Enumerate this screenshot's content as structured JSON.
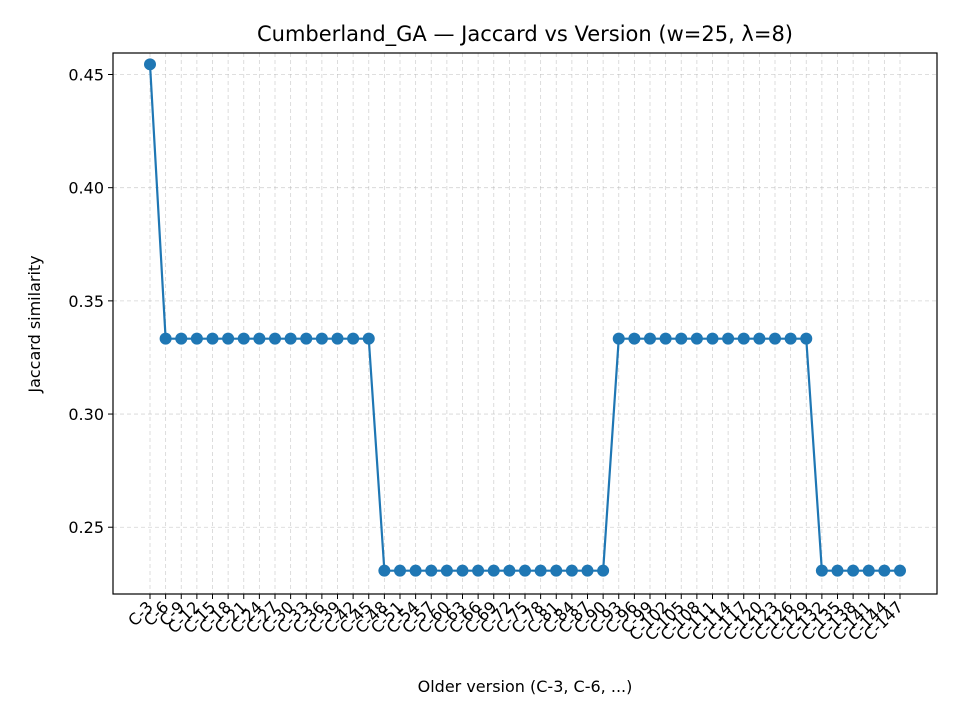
{
  "chart_data": {
    "type": "line",
    "title": "Cumberland_GA — Jaccard vs Version (w=25, λ=8)",
    "xlabel": "Older version (C-3, C-6, ...)",
    "ylabel": "Jaccard similarity",
    "ylim": [
      0.2205,
      0.4595
    ],
    "yticks": [
      0.25,
      0.3,
      0.35,
      0.4,
      0.45
    ],
    "ytick_labels": [
      "0.25",
      "0.30",
      "0.35",
      "0.40",
      "0.45"
    ],
    "grid": true,
    "categories": [
      "C-3",
      "C-6",
      "C-9",
      "C-12",
      "C-15",
      "C-18",
      "C-21",
      "C-24",
      "C-27",
      "C-30",
      "C-33",
      "C-36",
      "C-39",
      "C-42",
      "C-45",
      "C-48",
      "C-51",
      "C-54",
      "C-57",
      "C-60",
      "C-63",
      "C-66",
      "C-69",
      "C-72",
      "C-75",
      "C-78",
      "C-81",
      "C-84",
      "C-87",
      "C-90",
      "C-93",
      "C-96",
      "C-99",
      "C-102",
      "C-105",
      "C-108",
      "C-111",
      "C-114",
      "C-117",
      "C-120",
      "C-123",
      "C-126",
      "C-129",
      "C-132",
      "C-135",
      "C-138",
      "C-141",
      "C-144",
      "C-147"
    ],
    "series": [
      {
        "color": "#1f77b4",
        "values": [
          0.4545,
          0.3333,
          0.3333,
          0.3333,
          0.3333,
          0.3333,
          0.3333,
          0.3333,
          0.3333,
          0.3333,
          0.3333,
          0.3333,
          0.3333,
          0.3333,
          0.3333,
          0.2308,
          0.2308,
          0.2308,
          0.2308,
          0.2308,
          0.2308,
          0.2308,
          0.2308,
          0.2308,
          0.2308,
          0.2308,
          0.2308,
          0.2308,
          0.2308,
          0.2308,
          0.3333,
          0.3333,
          0.3333,
          0.3333,
          0.3333,
          0.3333,
          0.3333,
          0.3333,
          0.3333,
          0.3333,
          0.3333,
          0.3333,
          0.3333,
          0.2308,
          0.2308,
          0.2308,
          0.2308,
          0.2308,
          0.2308
        ]
      }
    ]
  }
}
